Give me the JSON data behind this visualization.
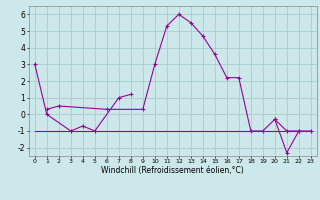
{
  "bg_color": "#cce8ea",
  "grid_color": "#aacccc",
  "line_color": "#990099",
  "hours": [
    0,
    1,
    2,
    3,
    4,
    5,
    6,
    7,
    8,
    9,
    10,
    11,
    12,
    13,
    14,
    15,
    16,
    17,
    18,
    19,
    20,
    21,
    22,
    23
  ],
  "series1": [
    3.0,
    0.0,
    null,
    -1.0,
    -0.7,
    -1.0,
    null,
    1.0,
    1.2,
    null,
    null,
    null,
    null,
    null,
    null,
    null,
    null,
    null,
    null,
    null,
    null,
    null,
    null,
    null
  ],
  "series2": [
    null,
    0.3,
    0.5,
    null,
    null,
    null,
    0.3,
    null,
    null,
    0.3,
    3.0,
    5.3,
    6.0,
    5.5,
    4.7,
    3.6,
    2.2,
    2.2,
    -1.0,
    -1.0,
    -0.3,
    -1.0,
    -1.0,
    -1.0
  ],
  "series3_x": [
    20,
    21,
    22
  ],
  "series3_y": [
    -0.3,
    -2.3,
    -1.0
  ],
  "flat_line_x": [
    0,
    23
  ],
  "flat_line_y": [
    -1.0,
    -1.0
  ],
  "xlabel": "Windchill (Refroidissement éolien,°C)",
  "ylim": [
    -2.5,
    6.5
  ],
  "xlim": [
    -0.5,
    23.5
  ],
  "yticks": [
    -2,
    -1,
    0,
    1,
    2,
    3,
    4,
    5,
    6
  ],
  "xticks": [
    0,
    1,
    2,
    3,
    4,
    5,
    6,
    7,
    8,
    9,
    10,
    11,
    12,
    13,
    14,
    15,
    16,
    17,
    18,
    19,
    20,
    21,
    22,
    23
  ]
}
